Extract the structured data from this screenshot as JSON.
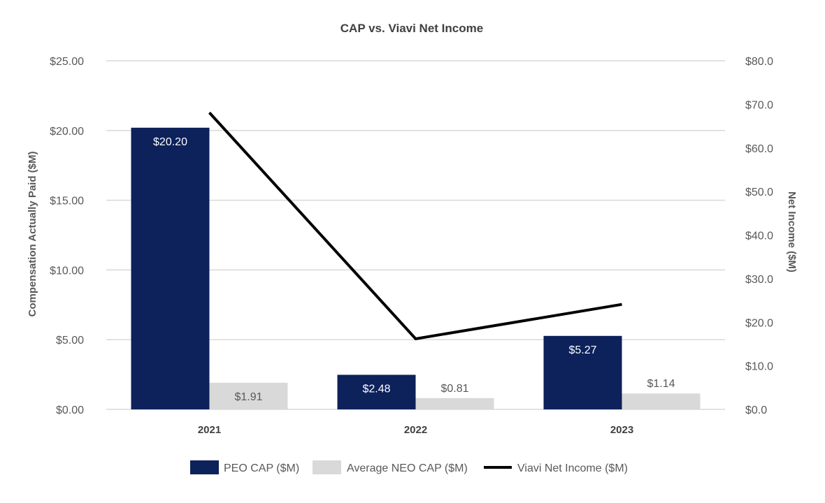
{
  "chart_data": {
    "type": "bar",
    "title": "CAP vs. Viavi Net Income",
    "categories": [
      "2021",
      "2022",
      "2023"
    ],
    "ylabel": "Compensation Actually Paid ($M)",
    "y2label": "Net Income ($M)",
    "ylim": [
      0,
      25
    ],
    "y2lim": [
      0,
      80
    ],
    "yticks": [
      0,
      5,
      10,
      15,
      20,
      25
    ],
    "ytick_labels": [
      "$0.00",
      "$5.00",
      "$10.00",
      "$15.00",
      "$20.00",
      "$25.00"
    ],
    "y2ticks": [
      0,
      10,
      20,
      30,
      40,
      50,
      60,
      70,
      80
    ],
    "y2tick_labels": [
      "$0.0",
      "$10.0",
      "$20.0",
      "$30.0",
      "$40.0",
      "$50.0",
      "$60.0",
      "$70.0",
      "$80.0"
    ],
    "grid": true,
    "legend_position": "bottom",
    "series": [
      {
        "name": "PEO CAP ($M)",
        "kind": "bar",
        "axis": "left",
        "color": "#0d215b",
        "values": [
          20.2,
          2.48,
          5.27
        ],
        "labels": [
          "$20.20",
          "$2.48",
          "$5.27"
        ]
      },
      {
        "name": "Average NEO CAP ($M)",
        "kind": "bar",
        "axis": "left",
        "color": "#d9d9d9",
        "values": [
          1.91,
          0.81,
          1.14
        ],
        "labels": [
          "$1.91",
          "$0.81",
          "$1.14"
        ]
      },
      {
        "name": "Viavi Net Income ($M)",
        "kind": "line",
        "axis": "right",
        "color": "#000000",
        "values": [
          68.1,
          16.2,
          24.1
        ]
      }
    ]
  }
}
